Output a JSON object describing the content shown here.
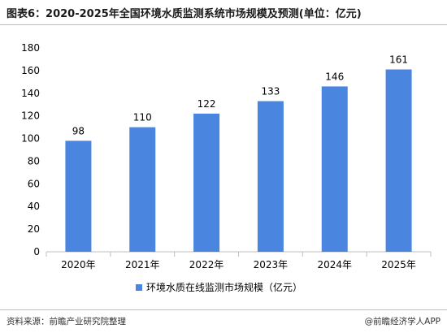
{
  "title": "图表6：2020-2025年全国环境水质监测系统市场规模及预测(单位：亿元)",
  "source": "资料来源：前瞻产业研究院整理",
  "brand": "@前瞻经济学人APP",
  "colors": {
    "bar": "#4a86e0",
    "axis": "#bfbfbf",
    "text": "#000000"
  },
  "chart_data": {
    "type": "bar",
    "categories": [
      "2020年",
      "2021年",
      "2022年",
      "2023年",
      "2024年",
      "2025年"
    ],
    "series": [
      {
        "name": "环境水质在线监测市场规模（亿元）",
        "values": [
          98,
          110,
          122,
          133,
          146,
          161
        ]
      }
    ],
    "title": "图表6：2020-2025年全国环境水质监测系统市场规模及预测(单位：亿元)",
    "xlabel": "",
    "ylabel": "",
    "ylim": [
      0,
      180
    ],
    "yticks": [
      0,
      20,
      40,
      60,
      80,
      100,
      120,
      140,
      160,
      180
    ],
    "grid": false,
    "legend": "bottom",
    "data_labels": true
  }
}
